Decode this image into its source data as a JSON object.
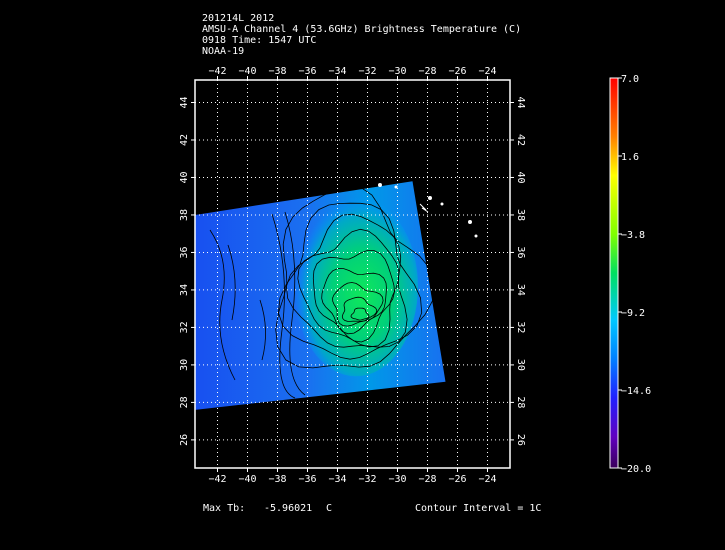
{
  "header": {
    "line1": "201214L 2012",
    "line2": "AMSU-A Channel 4 (53.6GHz) Brightness Temperature (C)",
    "line3": "0918 Time: 1547 UTC",
    "line4": "NOAA-19"
  },
  "footer": {
    "max_tb_label": "Max Tb:",
    "max_tb_value": "-5.96021",
    "max_tb_unit": "C",
    "contour_interval": "Contour Interval = 1C"
  },
  "chart_data": {
    "type": "heatmap",
    "title": "AMSU-A Channel 4 (53.6GHz) Brightness Temperature (C)",
    "xlabel": "",
    "ylabel": "",
    "xlim": [
      -43.5,
      -22.5
    ],
    "ylim": [
      24.5,
      45.2
    ],
    "x_ticks": [
      -42,
      -40,
      -38,
      -36,
      -34,
      -32,
      -30,
      -28,
      -26,
      -24
    ],
    "y_ticks": [
      26,
      28,
      30,
      32,
      34,
      36,
      38,
      40,
      42,
      44
    ],
    "grid": true,
    "swath_corners_lon_lat": [
      [
        -43.5,
        38.0
      ],
      [
        -29.0,
        39.8
      ],
      [
        -26.8,
        29.1
      ],
      [
        -43.5,
        27.6
      ]
    ],
    "max_tb": -5.96021,
    "max_tb_location": [
      -32.5,
      32.7
    ],
    "contour_interval": 1,
    "colorbar": {
      "ticks": [
        7.0,
        1.6,
        -3.8,
        -9.2,
        -14.6,
        -20.0
      ],
      "tick_labels": [
        "7.0",
        "1.6",
        "−3.8",
        "−9.2",
        "−14.6",
        "−20.0"
      ],
      "range": [
        -20.0,
        7.0
      ]
    }
  }
}
